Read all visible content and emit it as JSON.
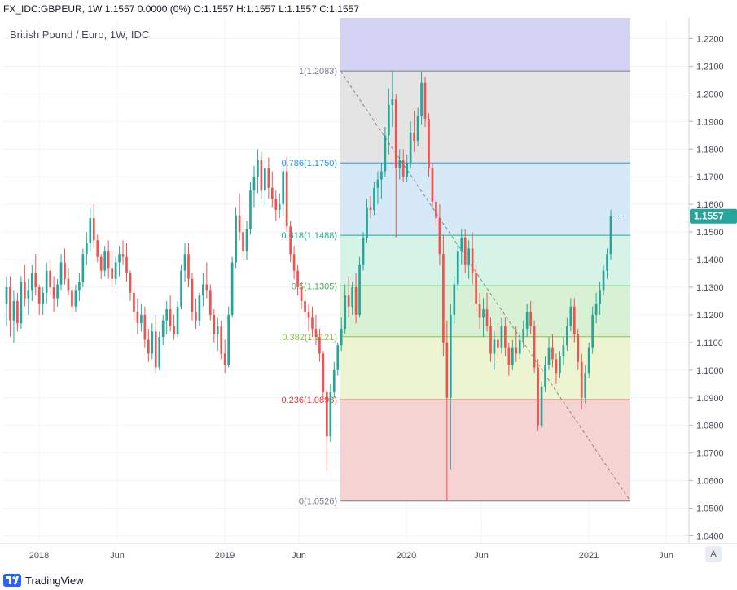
{
  "header": {
    "symbol": "FX_IDC:GBPEUR, 1W",
    "quote": "1.1557 0.0000 (0%) O:1.1557 H:1.1557 L:1.1557 C:1.1557"
  },
  "footer": {
    "brand": "TradingView"
  },
  "scale_button": "A",
  "chart_data": {
    "type": "candlestick",
    "title": "British Pound / Euro, 1W, IDC",
    "last_price_label": "1.1557",
    "ylim": [
      1.0375,
      1.2275
    ],
    "y_ticks": [
      "1.2200",
      "1.2100",
      "1.2000",
      "1.1900",
      "1.1800",
      "1.1700",
      "1.1600",
      "1.1500",
      "1.1400",
      "1.1300",
      "1.1200",
      "1.1100",
      "1.1000",
      "1.0900",
      "1.0800",
      "1.0700",
      "1.0600",
      "1.0500",
      "1.0400"
    ],
    "x_ticks": [
      "2018",
      "Jun",
      "2019",
      "Jun",
      "2020",
      "Jun",
      "2021",
      "Jun"
    ],
    "grid": true,
    "fib_levels": [
      {
        "label": "1(1.2083)",
        "ratio": 1,
        "value": 1.2083,
        "color": "#787b86"
      },
      {
        "label": "0.786(1.1750)",
        "ratio": 0.786,
        "value": 1.175,
        "color": "#2196f3"
      },
      {
        "label": "0.618(1.1488)",
        "ratio": 0.618,
        "value": 1.1488,
        "color": "#26a69a"
      },
      {
        "label": "0.5(1.1305)",
        "ratio": 0.5,
        "value": 1.1305,
        "color": "#4caf50"
      },
      {
        "label": "0.382(1.1121)",
        "ratio": 0.382,
        "value": 1.1121,
        "color": "#8bc34a"
      },
      {
        "label": "0.236(1.0893)",
        "ratio": 0.236,
        "value": 1.0893,
        "color": "#e53935"
      },
      {
        "label": "0(1.0526)",
        "ratio": 0,
        "value": 1.0526,
        "color": "#787b86"
      }
    ],
    "fib_bands": [
      {
        "from": 1.2083,
        "to": 1.2275,
        "color": "#d4d3f3"
      },
      {
        "from": 1.175,
        "to": 1.2083,
        "color": "#e4e4e4"
      },
      {
        "from": 1.1488,
        "to": 1.175,
        "color": "#d6e9f7"
      },
      {
        "from": 1.1305,
        "to": 1.1488,
        "color": "#d5f3e6"
      },
      {
        "from": 1.1121,
        "to": 1.1305,
        "color": "#d8f0d3"
      },
      {
        "from": 1.0893,
        "to": 1.1121,
        "color": "#ecf4d2"
      },
      {
        "from": 1.0526,
        "to": 1.0893,
        "color": "#f5d3d3"
      }
    ],
    "colors": {
      "up": "#26a69a",
      "down": "#ef5350",
      "last_price_bg": "#26a69a"
    },
    "candles": [
      [
        1.124,
        1.134,
        1.116,
        1.13
      ],
      [
        1.13,
        1.134,
        1.112,
        1.118
      ],
      [
        1.118,
        1.129,
        1.11,
        1.125
      ],
      [
        1.125,
        1.128,
        1.114,
        1.117
      ],
      [
        1.117,
        1.134,
        1.115,
        1.132
      ],
      [
        1.132,
        1.138,
        1.123,
        1.126
      ],
      [
        1.126,
        1.133,
        1.12,
        1.129
      ],
      [
        1.129,
        1.138,
        1.125,
        1.135
      ],
      [
        1.135,
        1.142,
        1.127,
        1.13
      ],
      [
        1.13,
        1.131,
        1.12,
        1.124
      ],
      [
        1.124,
        1.13,
        1.12,
        1.128
      ],
      [
        1.128,
        1.139,
        1.124,
        1.136
      ],
      [
        1.136,
        1.14,
        1.127,
        1.13
      ],
      [
        1.13,
        1.134,
        1.121,
        1.126
      ],
      [
        1.126,
        1.133,
        1.123,
        1.131
      ],
      [
        1.131,
        1.142,
        1.129,
        1.139
      ],
      [
        1.139,
        1.144,
        1.131,
        1.133
      ],
      [
        1.133,
        1.137,
        1.127,
        1.129
      ],
      [
        1.129,
        1.13,
        1.12,
        1.123
      ],
      [
        1.123,
        1.131,
        1.121,
        1.129
      ],
      [
        1.129,
        1.135,
        1.125,
        1.132
      ],
      [
        1.132,
        1.144,
        1.13,
        1.142
      ],
      [
        1.142,
        1.15,
        1.138,
        1.146
      ],
      [
        1.146,
        1.159,
        1.143,
        1.155
      ],
      [
        1.155,
        1.16,
        1.144,
        1.147
      ],
      [
        1.147,
        1.149,
        1.139,
        1.141
      ],
      [
        1.141,
        1.142,
        1.133,
        1.136
      ],
      [
        1.136,
        1.145,
        1.134,
        1.143
      ],
      [
        1.143,
        1.147,
        1.133,
        1.137
      ],
      [
        1.137,
        1.143,
        1.13,
        1.133
      ],
      [
        1.133,
        1.141,
        1.131,
        1.139
      ],
      [
        1.139,
        1.145,
        1.134,
        1.142
      ],
      [
        1.142,
        1.147,
        1.138,
        1.141
      ],
      [
        1.141,
        1.146,
        1.132,
        1.135
      ],
      [
        1.135,
        1.136,
        1.125,
        1.128
      ],
      [
        1.128,
        1.131,
        1.118,
        1.121
      ],
      [
        1.121,
        1.126,
        1.113,
        1.117
      ],
      [
        1.117,
        1.124,
        1.114,
        1.12
      ],
      [
        1.12,
        1.123,
        1.108,
        1.111
      ],
      [
        1.111,
        1.115,
        1.103,
        1.106
      ],
      [
        1.106,
        1.117,
        1.104,
        1.114
      ],
      [
        1.114,
        1.12,
        1.099,
        1.101
      ],
      [
        1.101,
        1.114,
        1.1,
        1.112
      ],
      [
        1.112,
        1.12,
        1.109,
        1.118
      ],
      [
        1.118,
        1.125,
        1.113,
        1.122
      ],
      [
        1.122,
        1.127,
        1.114,
        1.116
      ],
      [
        1.116,
        1.12,
        1.111,
        1.113
      ],
      [
        1.113,
        1.125,
        1.112,
        1.123
      ],
      [
        1.123,
        1.138,
        1.122,
        1.136
      ],
      [
        1.136,
        1.146,
        1.132,
        1.142
      ],
      [
        1.142,
        1.146,
        1.13,
        1.133
      ],
      [
        1.133,
        1.135,
        1.118,
        1.121
      ],
      [
        1.121,
        1.126,
        1.115,
        1.118
      ],
      [
        1.118,
        1.128,
        1.116,
        1.127
      ],
      [
        1.127,
        1.135,
        1.123,
        1.131
      ],
      [
        1.131,
        1.139,
        1.126,
        1.129
      ],
      [
        1.129,
        1.131,
        1.118,
        1.12
      ],
      [
        1.12,
        1.122,
        1.11,
        1.113
      ],
      [
        1.113,
        1.119,
        1.107,
        1.116
      ],
      [
        1.116,
        1.118,
        1.104,
        1.106
      ],
      [
        1.106,
        1.111,
        1.099,
        1.102
      ],
      [
        1.102,
        1.123,
        1.101,
        1.12
      ],
      [
        1.12,
        1.141,
        1.119,
        1.139
      ],
      [
        1.139,
        1.159,
        1.137,
        1.156
      ],
      [
        1.156,
        1.164,
        1.147,
        1.15
      ],
      [
        1.15,
        1.155,
        1.14,
        1.143
      ],
      [
        1.143,
        1.154,
        1.14,
        1.151
      ],
      [
        1.151,
        1.168,
        1.149,
        1.165
      ],
      [
        1.165,
        1.174,
        1.159,
        1.17
      ],
      [
        1.17,
        1.18,
        1.164,
        1.176
      ],
      [
        1.176,
        1.179,
        1.162,
        1.165
      ],
      [
        1.165,
        1.176,
        1.16,
        1.173
      ],
      [
        1.173,
        1.177,
        1.162,
        1.166
      ],
      [
        1.166,
        1.172,
        1.159,
        1.162
      ],
      [
        1.162,
        1.165,
        1.154,
        1.158
      ],
      [
        1.158,
        1.164,
        1.155,
        1.16
      ],
      [
        1.16,
        1.175,
        1.156,
        1.172
      ],
      [
        1.172,
        1.177,
        1.15,
        1.152
      ],
      [
        1.152,
        1.154,
        1.139,
        1.142
      ],
      [
        1.142,
        1.145,
        1.133,
        1.136
      ],
      [
        1.136,
        1.138,
        1.127,
        1.13
      ],
      [
        1.13,
        1.132,
        1.122,
        1.125
      ],
      [
        1.125,
        1.128,
        1.118,
        1.121
      ],
      [
        1.121,
        1.124,
        1.114,
        1.119
      ],
      [
        1.119,
        1.123,
        1.112,
        1.115
      ],
      [
        1.115,
        1.12,
        1.109,
        1.112
      ],
      [
        1.112,
        1.115,
        1.103,
        1.106
      ],
      [
        1.106,
        1.107,
        1.09,
        1.092
      ],
      [
        1.092,
        1.093,
        1.064,
        1.076
      ],
      [
        1.076,
        1.095,
        1.074,
        1.092
      ],
      [
        1.092,
        1.103,
        1.09,
        1.1
      ],
      [
        1.1,
        1.11,
        1.098,
        1.109
      ],
      [
        1.109,
        1.119,
        1.107,
        1.115
      ],
      [
        1.115,
        1.131,
        1.113,
        1.127
      ],
      [
        1.127,
        1.134,
        1.119,
        1.123
      ],
      [
        1.123,
        1.132,
        1.12,
        1.13
      ],
      [
        1.13,
        1.135,
        1.117,
        1.12
      ],
      [
        1.12,
        1.141,
        1.119,
        1.138
      ],
      [
        1.138,
        1.15,
        1.136,
        1.148
      ],
      [
        1.148,
        1.162,
        1.146,
        1.159
      ],
      [
        1.159,
        1.163,
        1.155,
        1.158
      ],
      [
        1.158,
        1.168,
        1.156,
        1.166
      ],
      [
        1.166,
        1.172,
        1.16,
        1.169
      ],
      [
        1.169,
        1.175,
        1.162,
        1.172
      ],
      [
        1.172,
        1.188,
        1.17,
        1.185
      ],
      [
        1.185,
        1.202,
        1.178,
        1.196
      ],
      [
        1.196,
        1.2083,
        1.188,
        1.198
      ],
      [
        1.198,
        1.2,
        1.148,
        1.173
      ],
      [
        1.173,
        1.18,
        1.169,
        1.176
      ],
      [
        1.176,
        1.18,
        1.168,
        1.17
      ],
      [
        1.17,
        1.178,
        1.168,
        1.175
      ],
      [
        1.175,
        1.19,
        1.173,
        1.186
      ],
      [
        1.186,
        1.194,
        1.179,
        1.183
      ],
      [
        1.183,
        1.195,
        1.181,
        1.192
      ],
      [
        1.192,
        1.208,
        1.189,
        1.204
      ],
      [
        1.204,
        1.206,
        1.188,
        1.191
      ],
      [
        1.191,
        1.193,
        1.17,
        1.173
      ],
      [
        1.173,
        1.175,
        1.159,
        1.161
      ],
      [
        1.161,
        1.163,
        1.152,
        1.155
      ],
      [
        1.155,
        1.16,
        1.138,
        1.142
      ],
      [
        1.142,
        1.149,
        1.105,
        1.11
      ],
      [
        1.11,
        1.118,
        1.0526,
        1.09
      ],
      [
        1.09,
        1.124,
        1.064,
        1.12
      ],
      [
        1.12,
        1.134,
        1.117,
        1.131
      ],
      [
        1.131,
        1.146,
        1.129,
        1.143
      ],
      [
        1.143,
        1.151,
        1.138,
        1.148
      ],
      [
        1.148,
        1.151,
        1.135,
        1.138
      ],
      [
        1.138,
        1.147,
        1.133,
        1.144
      ],
      [
        1.144,
        1.15,
        1.131,
        1.135
      ],
      [
        1.135,
        1.138,
        1.121,
        1.124
      ],
      [
        1.124,
        1.128,
        1.115,
        1.119
      ],
      [
        1.119,
        1.126,
        1.112,
        1.122
      ],
      [
        1.122,
        1.128,
        1.114,
        1.116
      ],
      [
        1.116,
        1.119,
        1.103,
        1.106
      ],
      [
        1.106,
        1.114,
        1.1,
        1.111
      ],
      [
        1.111,
        1.117,
        1.104,
        1.108
      ],
      [
        1.108,
        1.119,
        1.106,
        1.116
      ],
      [
        1.116,
        1.119,
        1.105,
        1.108
      ],
      [
        1.108,
        1.11,
        1.098,
        1.102
      ],
      [
        1.102,
        1.111,
        1.1,
        1.108
      ],
      [
        1.108,
        1.116,
        1.103,
        1.106
      ],
      [
        1.106,
        1.113,
        1.104,
        1.111
      ],
      [
        1.111,
        1.118,
        1.108,
        1.115
      ],
      [
        1.115,
        1.124,
        1.112,
        1.121
      ],
      [
        1.121,
        1.125,
        1.113,
        1.116
      ],
      [
        1.116,
        1.118,
        1.099,
        1.101
      ],
      [
        1.101,
        1.104,
        1.078,
        1.08
      ],
      [
        1.08,
        1.096,
        1.079,
        1.094
      ],
      [
        1.094,
        1.105,
        1.092,
        1.102
      ],
      [
        1.102,
        1.112,
        1.1,
        1.108
      ],
      [
        1.108,
        1.113,
        1.101,
        1.104
      ],
      [
        1.104,
        1.106,
        1.095,
        1.099
      ],
      [
        1.099,
        1.107,
        1.097,
        1.105
      ],
      [
        1.105,
        1.112,
        1.102,
        1.109
      ],
      [
        1.109,
        1.119,
        1.107,
        1.116
      ],
      [
        1.116,
        1.126,
        1.114,
        1.123
      ],
      [
        1.123,
        1.126,
        1.11,
        1.113
      ],
      [
        1.113,
        1.115,
        1.1,
        1.103
      ],
      [
        1.103,
        1.106,
        1.086,
        1.09
      ],
      [
        1.09,
        1.102,
        1.088,
        1.099
      ],
      [
        1.099,
        1.11,
        1.097,
        1.108
      ],
      [
        1.108,
        1.123,
        1.106,
        1.12
      ],
      [
        1.12,
        1.128,
        1.117,
        1.124
      ],
      [
        1.124,
        1.132,
        1.12,
        1.129
      ],
      [
        1.129,
        1.138,
        1.127,
        1.136
      ],
      [
        1.136,
        1.144,
        1.133,
        1.142
      ],
      [
        1.142,
        1.158,
        1.14,
        1.1557
      ]
    ]
  }
}
